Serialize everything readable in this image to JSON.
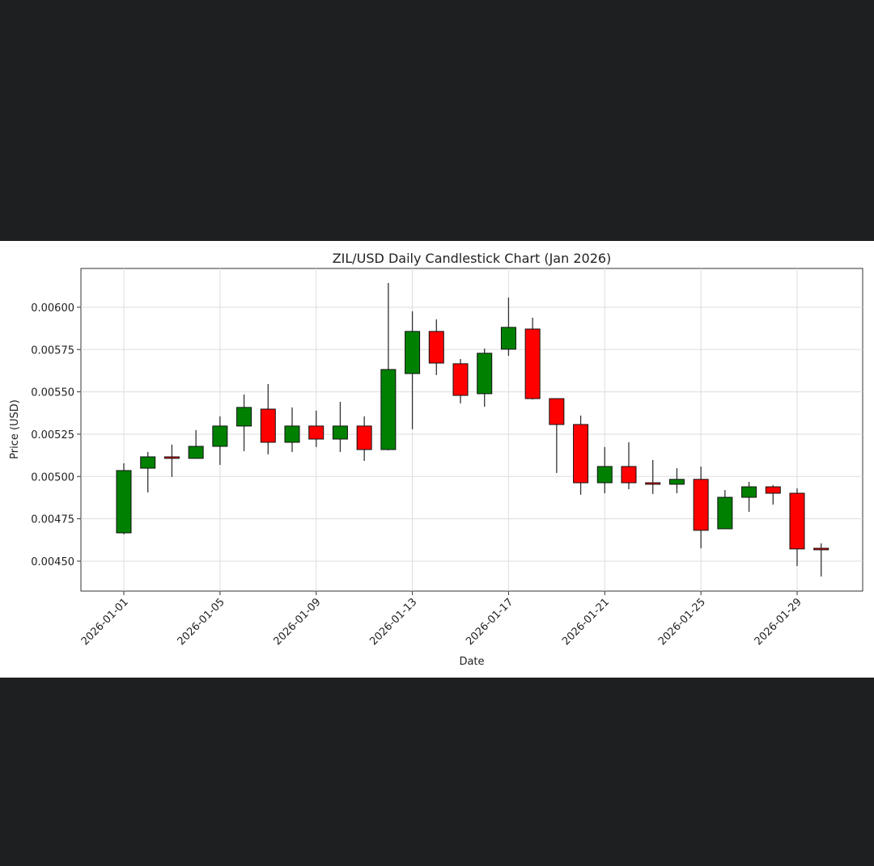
{
  "chart_data": {
    "type": "candlestick",
    "title": "ZIL/USD Daily Candlestick Chart (Jan 2026)",
    "x_label": "Date",
    "y_label": "Price (USD)",
    "up_color": "#008000",
    "down_color": "#ff0000",
    "grid": true,
    "x": [
      "2026-01-01",
      "2026-01-02",
      "2026-01-03",
      "2026-01-04",
      "2026-01-05",
      "2026-01-06",
      "2026-01-07",
      "2026-01-08",
      "2026-01-09",
      "2026-01-10",
      "2026-01-11",
      "2026-01-12",
      "2026-01-13",
      "2026-01-14",
      "2026-01-15",
      "2026-01-16",
      "2026-01-17",
      "2026-01-18",
      "2026-01-19",
      "2026-01-20",
      "2026-01-21",
      "2026-01-22",
      "2026-01-23",
      "2026-01-24",
      "2026-01-25",
      "2026-01-26",
      "2026-01-27",
      "2026-01-28",
      "2026-01-29",
      "2026-01-30"
    ],
    "open": [
      0.004667,
      0.005049,
      0.005116,
      0.005107,
      0.005178,
      0.005298,
      0.005398,
      0.005202,
      0.005298,
      0.005221,
      0.005298,
      0.005159,
      0.005608,
      0.005857,
      0.005666,
      0.005489,
      0.005752,
      0.005871,
      0.00546,
      0.005307,
      0.004963,
      0.005059,
      0.004963,
      0.004954,
      0.004983,
      0.004691,
      0.004877,
      0.004939,
      0.004901,
      0.004576
    ],
    "high": [
      0.005078,
      0.005145,
      0.005188,
      0.005274,
      0.005355,
      0.005484,
      0.005546,
      0.005408,
      0.005389,
      0.005441,
      0.005355,
      0.006143,
      0.005976,
      0.005928,
      0.005694,
      0.005756,
      0.006057,
      0.005938,
      0.005462,
      0.00536,
      0.005174,
      0.005202,
      0.005097,
      0.005049,
      0.005059,
      0.00492,
      0.004968,
      0.004949,
      0.00493,
      0.004605
    ],
    "low": [
      0.004658,
      0.004906,
      0.004997,
      0.005105,
      0.005068,
      0.00515,
      0.005131,
      0.005145,
      0.005174,
      0.005145,
      0.005092,
      0.005155,
      0.005279,
      0.005599,
      0.005432,
      0.005412,
      0.005713,
      0.005455,
      0.005021,
      0.004892,
      0.004901,
      0.004925,
      0.004897,
      0.004901,
      0.004576,
      0.004689,
      0.004791,
      0.004834,
      0.004471,
      0.004409
    ],
    "close": [
      0.005035,
      0.005116,
      0.005107,
      0.005178,
      0.005298,
      0.005408,
      0.005202,
      0.005298,
      0.005221,
      0.005298,
      0.005159,
      0.005632,
      0.005857,
      0.00567,
      0.005479,
      0.005728,
      0.005881,
      0.00546,
      0.005307,
      0.004963,
      0.005059,
      0.004963,
      0.004954,
      0.004983,
      0.004682,
      0.004877,
      0.004939,
      0.004901,
      0.004572,
      0.004567
    ],
    "ylim": [
      0.004323,
      0.006229
    ],
    "yticks": [
      {
        "value": 0.0045,
        "label": "0.00450"
      },
      {
        "value": 0.00475,
        "label": "0.00475"
      },
      {
        "value": 0.005,
        "label": "0.00500"
      },
      {
        "value": 0.00525,
        "label": "0.00525"
      },
      {
        "value": 0.0055,
        "label": "0.00550"
      },
      {
        "value": 0.00575,
        "label": "0.00575"
      },
      {
        "value": 0.006,
        "label": "0.00600"
      }
    ],
    "xticks": [
      "2026-01-01",
      "2026-01-05",
      "2026-01-09",
      "2026-01-13",
      "2026-01-17",
      "2026-01-21",
      "2026-01-25",
      "2026-01-29"
    ]
  }
}
